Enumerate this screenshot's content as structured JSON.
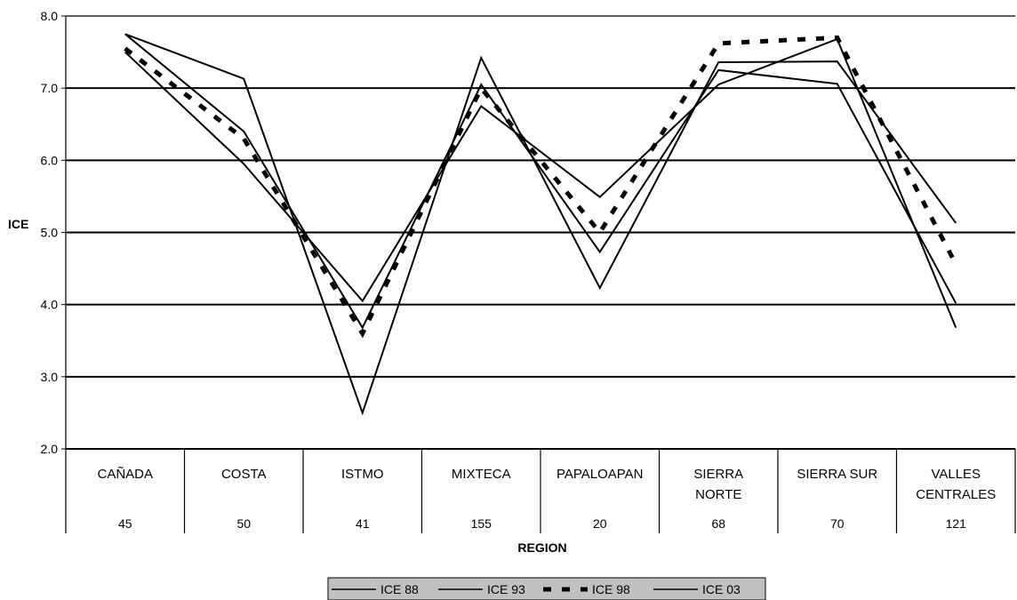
{
  "chart_data": {
    "type": "line",
    "ylabel": "ICE",
    "xlabel": "REGION",
    "ylim": [
      2.0,
      8.0
    ],
    "yticks": [
      "2.0",
      "3.0",
      "4.0",
      "5.0",
      "6.0",
      "7.0",
      "8.0"
    ],
    "grid": true,
    "legend_position": "bottom",
    "categories": [
      {
        "line1": "CAÑADA",
        "line2": "",
        "count": "45"
      },
      {
        "line1": "COSTA",
        "line2": "",
        "count": "50"
      },
      {
        "line1": "ISTMO",
        "line2": "",
        "count": "41"
      },
      {
        "line1": "MIXTECA",
        "line2": "",
        "count": "155"
      },
      {
        "line1": "PAPALOAPAN",
        "line2": "",
        "count": "20"
      },
      {
        "line1": "SIERRA",
        "line2": "NORTE",
        "count": "68"
      },
      {
        "line1": "SIERRA SUR",
        "line2": "",
        "count": "70"
      },
      {
        "line1": "VALLES",
        "line2": "CENTRALES",
        "count": "121"
      }
    ],
    "series": [
      {
        "name": "ICE 88",
        "style": "solid",
        "values": [
          7.75,
          7.13,
          2.5,
          7.42,
          4.23,
          7.36,
          7.37,
          5.13
        ]
      },
      {
        "name": "ICE 93",
        "style": "solid",
        "values": [
          7.5,
          5.95,
          4.05,
          6.75,
          5.49,
          7.05,
          7.68,
          3.68
        ]
      },
      {
        "name": "ICE 98",
        "style": "dashed",
        "values": [
          7.55,
          6.3,
          3.6,
          7.0,
          5.0,
          7.62,
          7.7,
          4.56
        ]
      },
      {
        "name": "ICE 03",
        "style": "solid",
        "values": [
          7.75,
          6.4,
          3.68,
          7.05,
          4.73,
          7.25,
          7.06,
          4.02
        ]
      }
    ],
    "colors": {
      "line": "#000000",
      "grid": "#000000",
      "legend_bg": "#c0c0c0"
    }
  }
}
